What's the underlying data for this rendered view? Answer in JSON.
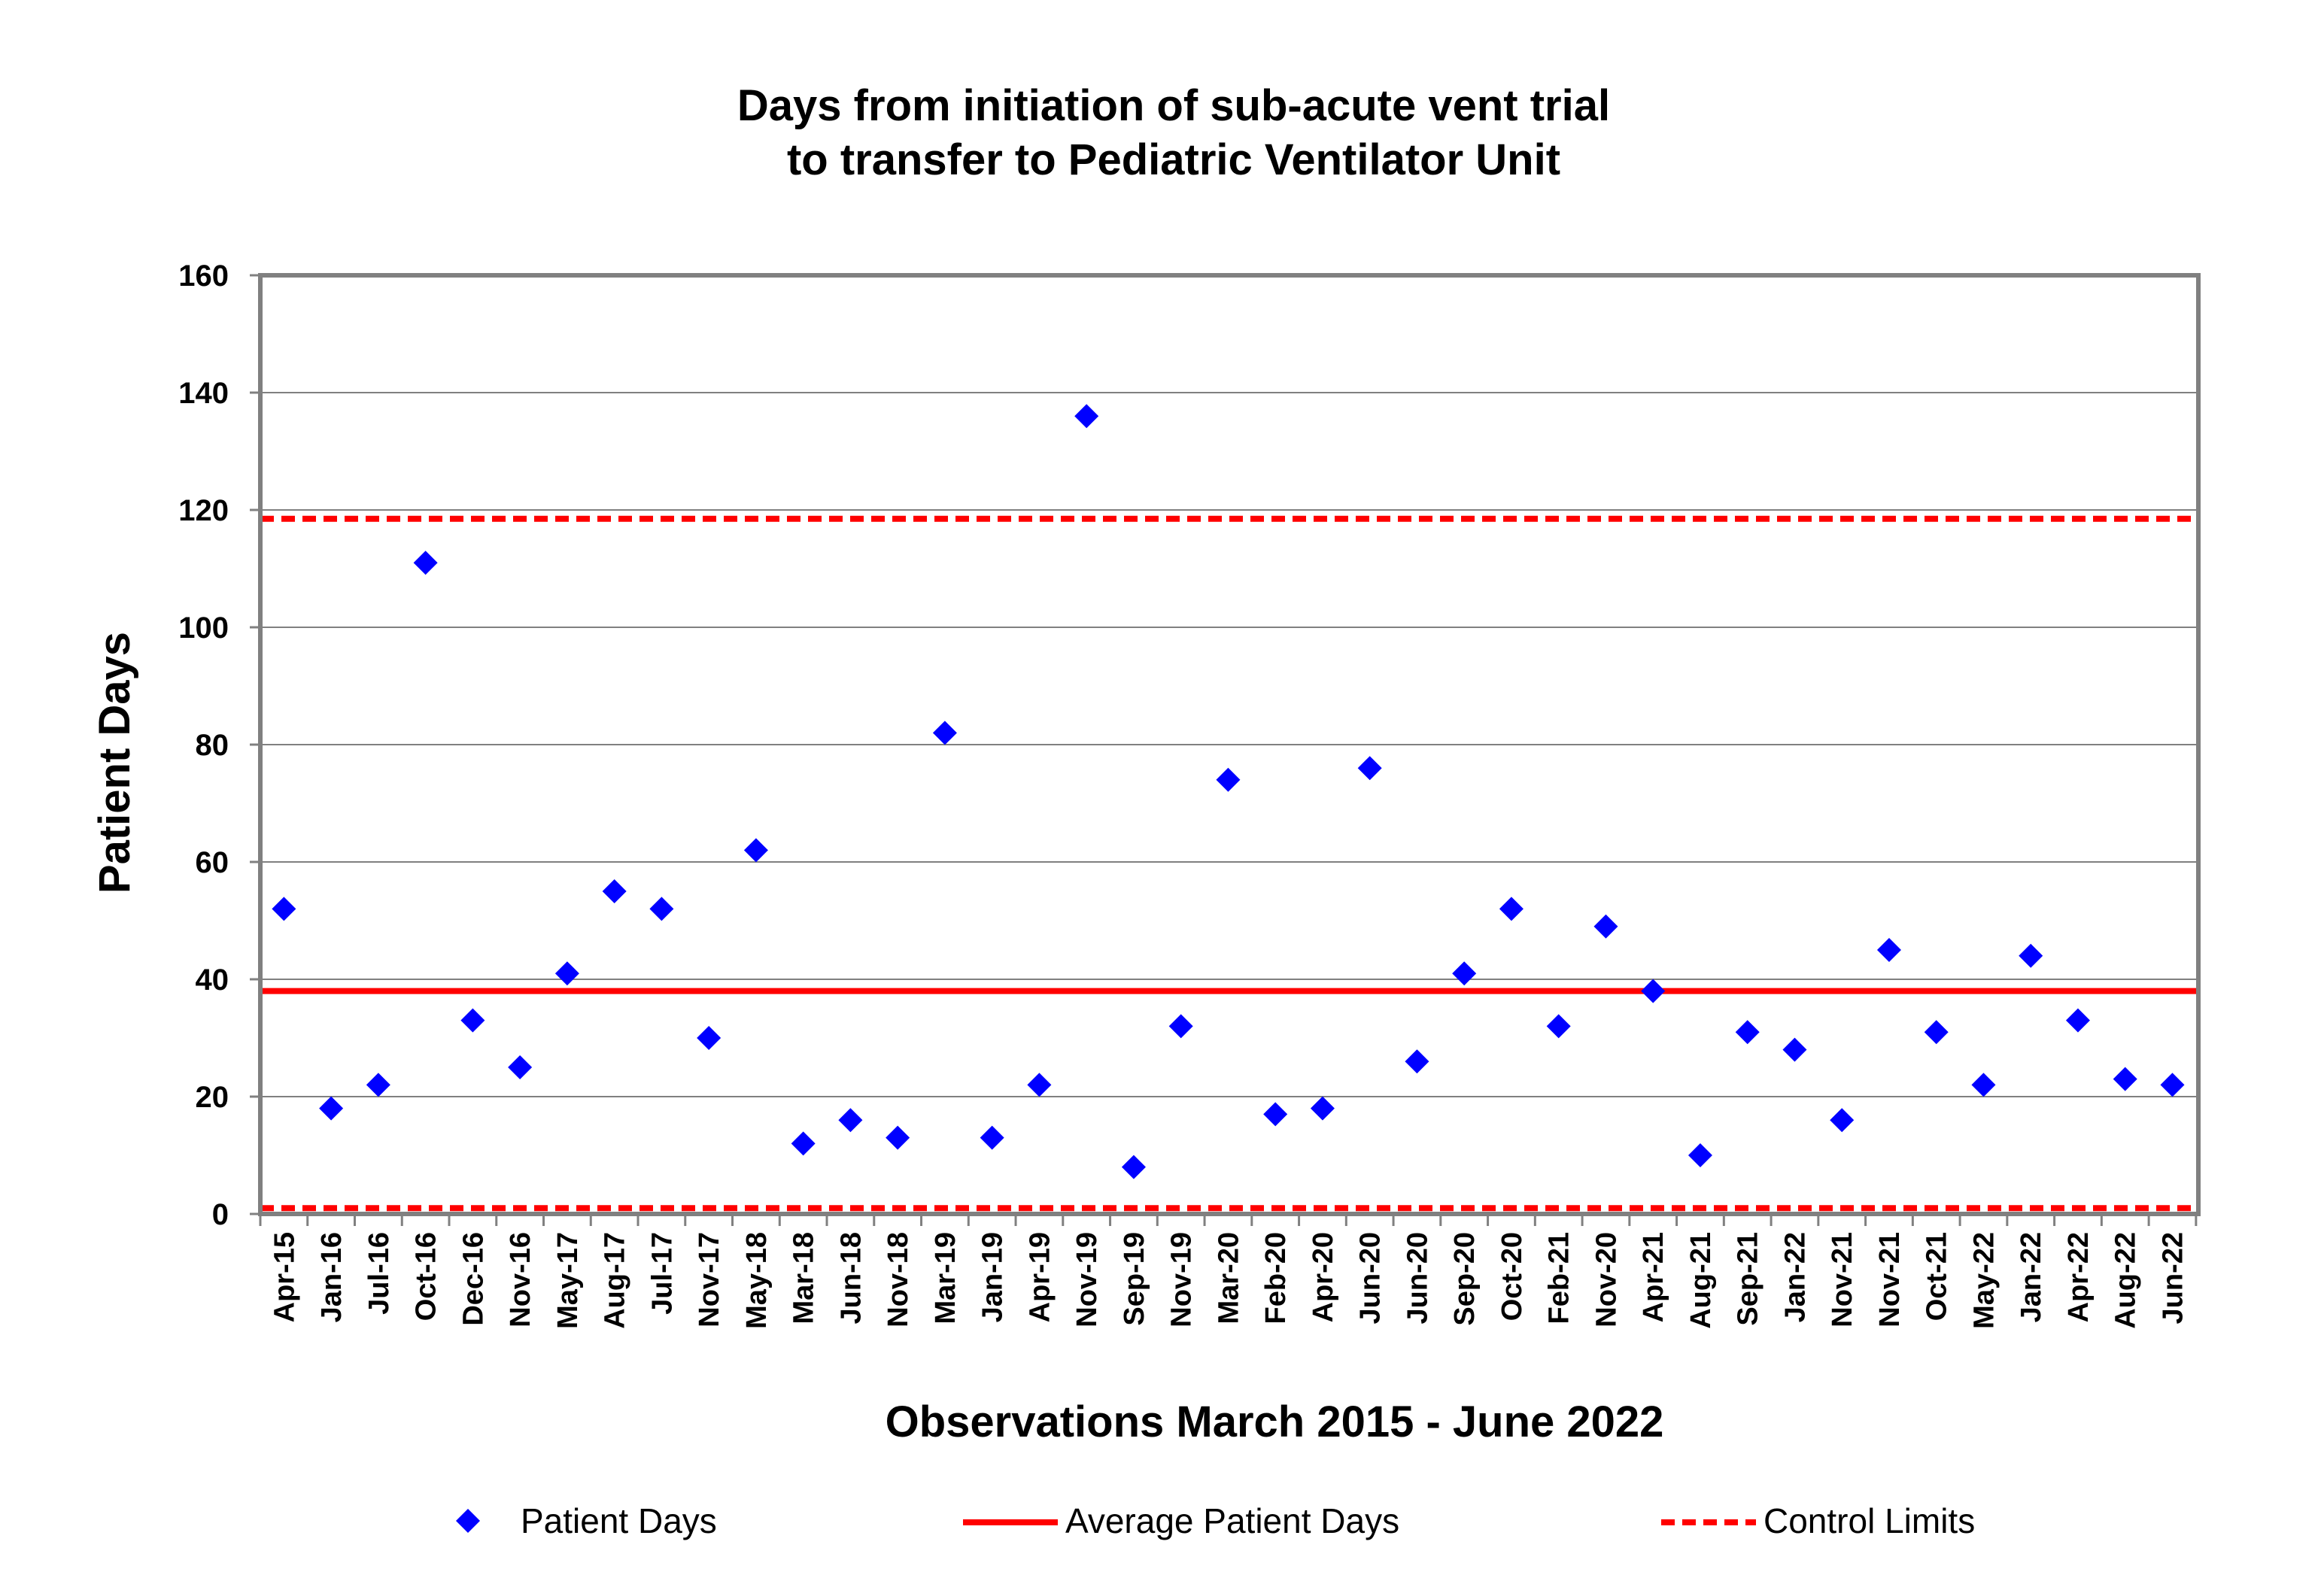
{
  "chart_data": {
    "type": "scatter",
    "title_lines": [
      "Days from initiation of sub-acute vent trial",
      "to transfer to Pediatric Ventilator Unit"
    ],
    "xlabel": "Observations March 2015 - June 2022",
    "ylabel": "Patient Days",
    "ylim": [
      0,
      160
    ],
    "yticks": [
      0,
      20,
      40,
      60,
      80,
      100,
      120,
      140,
      160
    ],
    "grid": true,
    "legend_position": "bottom",
    "categories": [
      "Apr-15",
      "Jan-16",
      "Jul-16",
      "Oct-16",
      "Dec-16",
      "Nov-16",
      "May-17",
      "Aug-17",
      "Jul-17",
      "Nov-17",
      "May-18",
      "Mar-18",
      "Jun-18",
      "Nov-18",
      "Mar-19",
      "Jan-19",
      "Apr-19",
      "Nov-19",
      "Sep-19",
      "Nov-19",
      "Mar-20",
      "Feb-20",
      "Apr-20",
      "Jun-20",
      "Jun-20",
      "Sep-20",
      "Oct-20",
      "Feb-21",
      "Nov-20",
      "Apr-21",
      "Aug-21",
      "Sep-21",
      "Jan-22",
      "Nov-21",
      "Nov-21",
      "Oct-21",
      "May-22",
      "Jan-22",
      "Apr-22",
      "Aug-22",
      "Jun-22"
    ],
    "series": [
      {
        "name": "Patient Days",
        "color": "#0000FF",
        "marker": "diamond",
        "values": [
          52,
          18,
          22,
          111,
          33,
          25,
          41,
          55,
          52,
          30,
          62,
          12,
          16,
          13,
          82,
          13,
          22,
          136,
          8,
          32,
          74,
          17,
          18,
          76,
          26,
          41,
          52,
          32,
          49,
          38,
          10,
          31,
          28,
          16,
          45,
          31,
          22,
          44,
          33,
          23,
          22
        ]
      },
      {
        "name": "Average Patient Days",
        "color": "#FF0000",
        "line": "solid",
        "value": 38
      },
      {
        "name": "Control Limits",
        "color": "#FF0000",
        "line": "dashed",
        "upper": 118.5,
        "lower": 1
      }
    ]
  }
}
